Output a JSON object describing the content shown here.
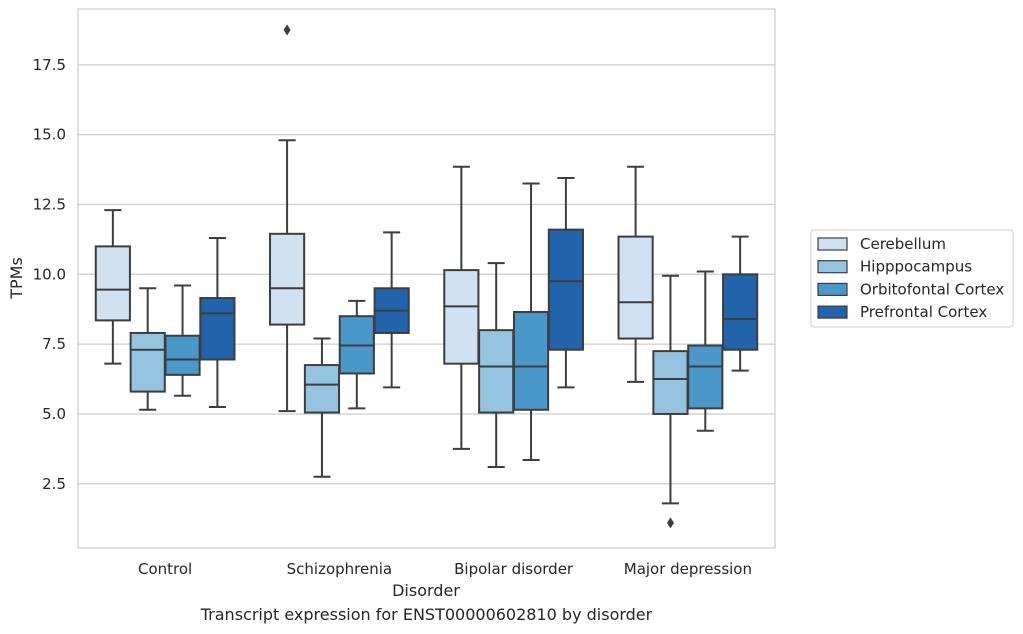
{
  "caption": "Transcript expression for ENST00000602810 by disorder",
  "chart_data": {
    "type": "box",
    "title": "",
    "xlabel": "Disorder",
    "ylabel": "TPMs",
    "ylim": [
      0.2,
      19.5
    ],
    "yticks": [
      2.5,
      5.0,
      7.5,
      10.0,
      12.5,
      15.0,
      17.5
    ],
    "ytick_labels": [
      "2.5",
      "5.0",
      "7.5",
      "10.0",
      "12.5",
      "15.0",
      "17.5"
    ],
    "grid": "horizontal",
    "legend_position": "right",
    "categories": [
      "Control",
      "Schizophrenia",
      "Bipolar disorder",
      "Major depression"
    ],
    "series": [
      {
        "name": "Cerebellum",
        "color": "#d0e1f2",
        "boxes": [
          {
            "whislo": 6.8,
            "q1": 8.35,
            "med": 9.45,
            "q3": 11.0,
            "whishi": 12.3,
            "fliers": []
          },
          {
            "whislo": 5.1,
            "q1": 8.2,
            "med": 9.5,
            "q3": 11.45,
            "whishi": 14.8,
            "fliers": [
              18.75
            ]
          },
          {
            "whislo": 3.75,
            "q1": 6.8,
            "med": 8.85,
            "q3": 10.15,
            "whishi": 13.85,
            "fliers": []
          },
          {
            "whislo": 6.15,
            "q1": 7.7,
            "med": 9.0,
            "q3": 11.35,
            "whishi": 13.85,
            "fliers": []
          }
        ]
      },
      {
        "name": "Hipppocampus",
        "color": "#94c4df",
        "boxes": [
          {
            "whislo": 5.15,
            "q1": 5.8,
            "med": 7.3,
            "q3": 7.9,
            "whishi": 9.5,
            "fliers": []
          },
          {
            "whislo": 2.75,
            "q1": 5.05,
            "med": 6.05,
            "q3": 6.75,
            "whishi": 7.7,
            "fliers": []
          },
          {
            "whislo": 3.1,
            "q1": 5.05,
            "med": 6.7,
            "q3": 8.0,
            "whishi": 10.4,
            "fliers": []
          },
          {
            "whislo": 1.8,
            "q1": 5.0,
            "med": 6.25,
            "q3": 7.25,
            "whishi": 9.95,
            "fliers": [
              1.1
            ]
          }
        ]
      },
      {
        "name": "Orbitofontal Cortex",
        "color": "#4a98c9",
        "boxes": [
          {
            "whislo": 5.65,
            "q1": 6.4,
            "med": 6.95,
            "q3": 7.8,
            "whishi": 9.6,
            "fliers": []
          },
          {
            "whislo": 5.2,
            "q1": 6.45,
            "med": 7.45,
            "q3": 8.5,
            "whishi": 9.05,
            "fliers": []
          },
          {
            "whislo": 3.35,
            "q1": 5.15,
            "med": 6.7,
            "q3": 8.65,
            "whishi": 13.25,
            "fliers": []
          },
          {
            "whislo": 4.4,
            "q1": 5.2,
            "med": 6.7,
            "q3": 7.45,
            "whishi": 10.1,
            "fliers": []
          }
        ]
      },
      {
        "name": "Prefrontal Cortex",
        "color": "#2164ab",
        "boxes": [
          {
            "whislo": 5.25,
            "q1": 6.95,
            "med": 8.6,
            "q3": 9.15,
            "whishi": 11.3,
            "fliers": []
          },
          {
            "whislo": 5.95,
            "q1": 7.9,
            "med": 8.7,
            "q3": 9.5,
            "whishi": 11.5,
            "fliers": []
          },
          {
            "whislo": 5.95,
            "q1": 7.3,
            "med": 9.75,
            "q3": 11.6,
            "whishi": 13.45,
            "fliers": []
          },
          {
            "whislo": 6.55,
            "q1": 7.3,
            "med": 8.4,
            "q3": 10.0,
            "whishi": 11.35,
            "fliers": []
          }
        ]
      }
    ]
  }
}
